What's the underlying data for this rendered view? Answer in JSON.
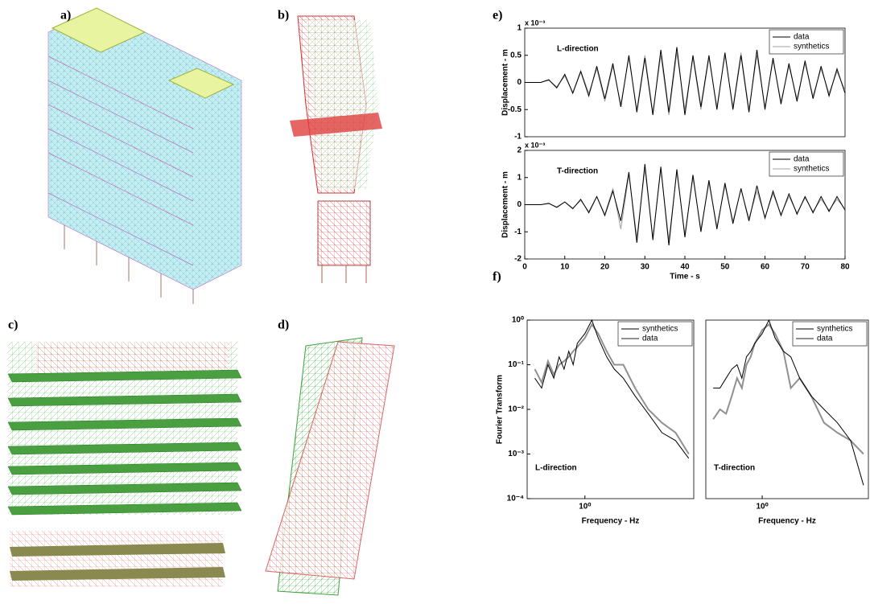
{
  "panel_labels": [
    "a)",
    "b)",
    "c)",
    "d)",
    "e)",
    "f)"
  ],
  "chart_data": [
    {
      "type": "line",
      "ylabel": "Displacement - m",
      "multiplier": "x 10⁻³",
      "annotation": "L-direction",
      "x": [
        0,
        2,
        4,
        6,
        8,
        10,
        12,
        14,
        16,
        18,
        20,
        22,
        24,
        26,
        28,
        30,
        32,
        34,
        36,
        38,
        40,
        42,
        44,
        46,
        48,
        50,
        52,
        54,
        56,
        58,
        60,
        62,
        64,
        66,
        68,
        70,
        72,
        74,
        76,
        78,
        80
      ],
      "series": [
        {
          "name": "data",
          "color": "#000000",
          "values": [
            0,
            0,
            0,
            0.05,
            -0.1,
            0.15,
            -0.2,
            0.2,
            -0.25,
            0.3,
            -0.3,
            0.35,
            -0.45,
            0.5,
            -0.55,
            0.45,
            -0.6,
            0.6,
            -0.55,
            0.65,
            -0.6,
            0.5,
            -0.45,
            0.5,
            -0.5,
            0.55,
            -0.5,
            0.5,
            -0.55,
            0.6,
            -0.5,
            0.45,
            -0.4,
            0.35,
            -0.35,
            0.4,
            -0.3,
            0.3,
            -0.25,
            0.25,
            -0.2
          ]
        },
        {
          "name": "synthetics",
          "color": "#a0a0a0",
          "values": [
            0,
            0,
            0,
            0.04,
            -0.08,
            0.12,
            -0.18,
            0.22,
            -0.2,
            0.25,
            -0.35,
            0.3,
            -0.4,
            0.45,
            -0.5,
            0.5,
            -0.55,
            0.5,
            -0.6,
            0.55,
            -0.5,
            0.45,
            -0.5,
            0.45,
            -0.45,
            0.5,
            -0.45,
            0.55,
            -0.5,
            0.5,
            -0.45,
            0.4,
            -0.35,
            0.3,
            -0.3,
            0.35,
            -0.25,
            0.25,
            -0.2,
            0.2,
            -0.15
          ]
        }
      ],
      "xlim": [
        0,
        80
      ],
      "ylim": [
        -1,
        1
      ],
      "yticks": [
        -1,
        -0.5,
        0,
        0.5,
        1
      ]
    },
    {
      "type": "line",
      "xlabel": "Time - s",
      "ylabel": "Displacement - m",
      "multiplier": "x 10⁻³",
      "annotation": "T-direction",
      "x": [
        0,
        2,
        4,
        6,
        8,
        10,
        12,
        14,
        16,
        18,
        20,
        22,
        24,
        26,
        28,
        30,
        32,
        34,
        36,
        38,
        40,
        42,
        44,
        46,
        48,
        50,
        52,
        54,
        56,
        58,
        60,
        62,
        64,
        66,
        68,
        70,
        72,
        74,
        76,
        78,
        80
      ],
      "series": [
        {
          "name": "data",
          "color": "#000000",
          "values": [
            0,
            0,
            0,
            0.05,
            -0.1,
            0.1,
            -0.15,
            0.2,
            -0.3,
            0.3,
            -0.4,
            0.5,
            -0.6,
            1.2,
            -1.4,
            1.5,
            -1.3,
            1.4,
            -1.5,
            1.3,
            -1.2,
            1.1,
            -1.0,
            0.9,
            -0.9,
            0.8,
            -0.7,
            0.6,
            -0.6,
            0.7,
            -0.5,
            0.5,
            -0.4,
            0.4,
            -0.35,
            0.3,
            -0.3,
            0.3,
            -0.25,
            0.3,
            -0.2
          ]
        },
        {
          "name": "synthetics",
          "color": "#a0a0a0",
          "values": [
            0,
            0,
            0,
            0.04,
            -0.08,
            0.1,
            -0.12,
            0.15,
            -0.25,
            0.3,
            -0.35,
            0.6,
            -0.9,
            1.1,
            -1.2,
            1.3,
            -1.2,
            1.3,
            -1.3,
            1.2,
            -1.1,
            1.0,
            -0.9,
            0.8,
            -0.8,
            0.7,
            -0.6,
            0.55,
            -0.5,
            0.5,
            -0.45,
            0.4,
            -0.35,
            0.3,
            -0.3,
            0.25,
            -0.25,
            0.2,
            -0.2,
            0.2,
            -0.15
          ]
        }
      ],
      "xlim": [
        0,
        80
      ],
      "ylim": [
        -2,
        2
      ],
      "xticks": [
        0,
        10,
        20,
        30,
        40,
        50,
        60,
        70,
        80
      ],
      "yticks": [
        -2,
        -1,
        0,
        1,
        2
      ]
    },
    {
      "type": "line",
      "xlabel": "Frequency - Hz",
      "ylabel": "Fourier Transform",
      "annotation": "L-direction",
      "xlog": true,
      "ylog": true,
      "x": [
        0.5,
        0.55,
        0.6,
        0.65,
        0.7,
        0.75,
        0.8,
        0.85,
        0.9,
        1.0,
        1.1,
        1.2,
        1.35,
        1.5,
        1.7,
        2.0,
        2.4,
        2.9,
        3.5,
        4.2
      ],
      "series": [
        {
          "name": "synthetics",
          "color": "#000000",
          "values": [
            0.05,
            0.03,
            0.1,
            0.05,
            0.15,
            0.08,
            0.2,
            0.1,
            0.3,
            0.5,
            1,
            0.4,
            0.15,
            0.08,
            0.05,
            0.02,
            0.008,
            0.003,
            0.002,
            0.0008
          ]
        },
        {
          "name": "data",
          "color": "#909090",
          "values": [
            0.08,
            0.04,
            0.12,
            0.06,
            0.1,
            0.12,
            0.15,
            0.2,
            0.25,
            0.4,
            0.8,
            0.5,
            0.2,
            0.1,
            0.1,
            0.03,
            0.01,
            0.005,
            0.003,
            0.001
          ]
        }
      ],
      "xlim": [
        0.45,
        4.5
      ],
      "ylim": [
        0.0001,
        1
      ],
      "xticks": [
        {
          "value": 1,
          "label": "10⁰"
        }
      ],
      "yticks": [
        {
          "value": 0.0001,
          "label": "10⁻⁴"
        },
        {
          "value": 0.001,
          "label": "10⁻³"
        },
        {
          "value": 0.01,
          "label": "10⁻²"
        },
        {
          "value": 0.1,
          "label": "10⁻¹"
        },
        {
          "value": 1,
          "label": "10⁰"
        }
      ]
    },
    {
      "type": "line",
      "xlabel": "Frequency - Hz",
      "annotation": "T-direction",
      "xlog": true,
      "ylog": true,
      "x": [
        0.5,
        0.55,
        0.6,
        0.65,
        0.7,
        0.75,
        0.8,
        0.85,
        0.9,
        1.0,
        1.1,
        1.2,
        1.35,
        1.5,
        1.7,
        2.0,
        2.4,
        2.9,
        3.5,
        4.2
      ],
      "series": [
        {
          "name": "synthetics",
          "color": "#000000",
          "values": [
            0.03,
            0.03,
            0.05,
            0.08,
            0.1,
            0.05,
            0.15,
            0.2,
            0.3,
            0.5,
            1,
            0.4,
            0.2,
            0.15,
            0.05,
            0.02,
            0.01,
            0.005,
            0.002,
            0.0002
          ]
        },
        {
          "name": "data",
          "color": "#909090",
          "values": [
            0.006,
            0.01,
            0.008,
            0.02,
            0.05,
            0.03,
            0.1,
            0.15,
            0.3,
            0.6,
            0.8,
            0.5,
            0.2,
            0.03,
            0.05,
            0.02,
            0.005,
            0.003,
            0.002,
            0.001
          ]
        }
      ],
      "xlim": [
        0.45,
        4.5
      ],
      "ylim": [
        0.0001,
        1
      ],
      "xticks": [
        {
          "value": 1,
          "label": "10⁰"
        }
      ]
    }
  ]
}
